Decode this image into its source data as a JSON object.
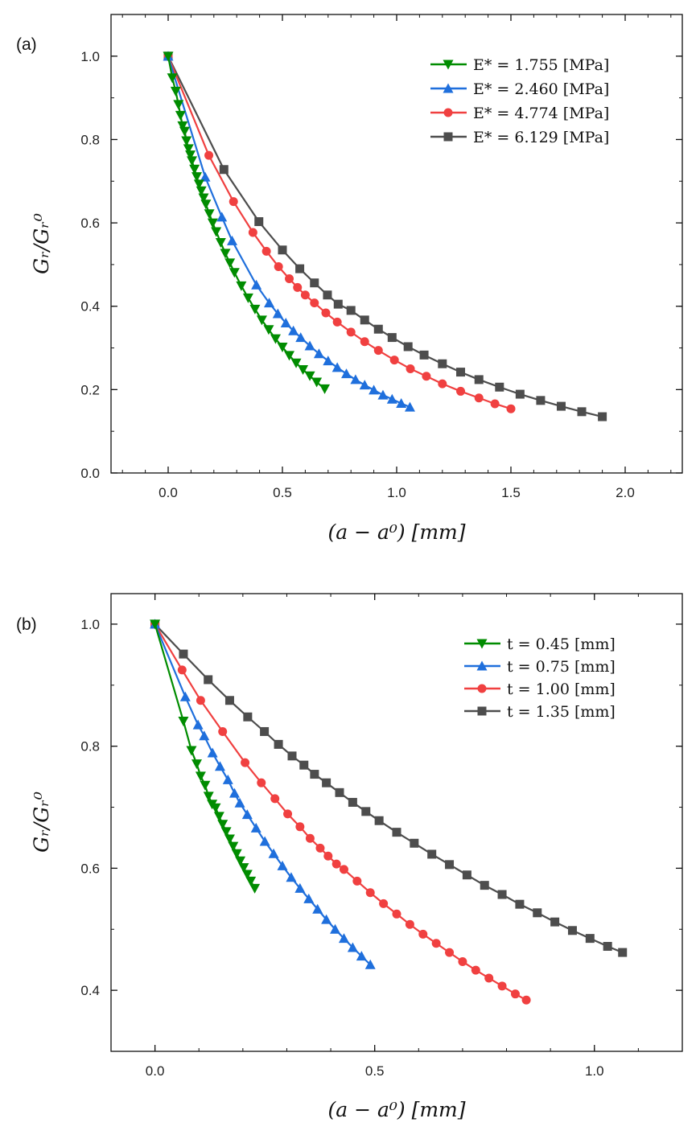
{
  "chart_data": [
    {
      "panel_label": "(a)",
      "type": "line",
      "xlabel": "(a − a⁰) [mm]",
      "ylabel": "Gᵣ/Gᵣ⁰",
      "xlim": [
        -0.25,
        2.25
      ],
      "ylim": [
        0.0,
        1.1
      ],
      "xticks": [
        "0.0",
        "0.5",
        "1.0",
        "1.5",
        "2.0"
      ],
      "yticks": [
        "0.0",
        "0.2",
        "0.4",
        "0.6",
        "0.8",
        "1.0"
      ],
      "grid": false,
      "legend_position": "top-right",
      "series": [
        {
          "name": "E* = 6.129 [MPa]",
          "color": "#4d4d4d",
          "marker": "square",
          "points": [
            [
              0,
              1.0
            ],
            [
              0.244,
              0.728
            ],
            [
              0.397,
              0.603
            ],
            [
              0.5,
              0.535
            ],
            [
              0.576,
              0.49
            ],
            [
              0.64,
              0.456
            ],
            [
              0.697,
              0.427
            ],
            [
              0.744,
              0.405
            ],
            [
              0.8,
              0.39
            ],
            [
              0.86,
              0.367
            ],
            [
              0.92,
              0.345
            ],
            [
              0.98,
              0.325
            ],
            [
              1.05,
              0.303
            ],
            [
              1.12,
              0.283
            ],
            [
              1.2,
              0.262
            ],
            [
              1.28,
              0.242
            ],
            [
              1.36,
              0.224
            ],
            [
              1.45,
              0.206
            ],
            [
              1.54,
              0.189
            ],
            [
              1.63,
              0.174
            ],
            [
              1.72,
              0.16
            ],
            [
              1.81,
              0.147
            ],
            [
              1.9,
              0.135
            ]
          ]
        },
        {
          "name": "E* = 4.774 [MPa]",
          "color": "#f04040",
          "marker": "circle",
          "points": [
            [
              0,
              1.0
            ],
            [
              0.178,
              0.762
            ],
            [
              0.286,
              0.651
            ],
            [
              0.371,
              0.577
            ],
            [
              0.43,
              0.532
            ],
            [
              0.483,
              0.495
            ],
            [
              0.53,
              0.466
            ],
            [
              0.566,
              0.445
            ],
            [
              0.6,
              0.427
            ],
            [
              0.64,
              0.408
            ],
            [
              0.69,
              0.384
            ],
            [
              0.74,
              0.362
            ],
            [
              0.8,
              0.338
            ],
            [
              0.86,
              0.315
            ],
            [
              0.92,
              0.294
            ],
            [
              0.99,
              0.271
            ],
            [
              1.06,
              0.25
            ],
            [
              1.13,
              0.232
            ],
            [
              1.2,
              0.214
            ],
            [
              1.28,
              0.196
            ],
            [
              1.36,
              0.18
            ],
            [
              1.43,
              0.166
            ],
            [
              1.5,
              0.154
            ]
          ]
        },
        {
          "name": "E* = 2.460 [MPa]",
          "color": "#1f6fdc",
          "marker": "triangle-up",
          "points": [
            [
              0,
              1.0
            ],
            [
              0.162,
              0.71
            ],
            [
              0.235,
              0.614
            ],
            [
              0.28,
              0.557
            ],
            [
              0.386,
              0.451
            ],
            [
              0.442,
              0.408
            ],
            [
              0.48,
              0.382
            ],
            [
              0.515,
              0.36
            ],
            [
              0.548,
              0.341
            ],
            [
              0.58,
              0.325
            ],
            [
              0.62,
              0.305
            ],
            [
              0.66,
              0.286
            ],
            [
              0.7,
              0.269
            ],
            [
              0.74,
              0.253
            ],
            [
              0.78,
              0.238
            ],
            [
              0.82,
              0.224
            ],
            [
              0.86,
              0.211
            ],
            [
              0.9,
              0.199
            ],
            [
              0.94,
              0.187
            ],
            [
              0.98,
              0.177
            ],
            [
              1.02,
              0.167
            ],
            [
              1.058,
              0.158
            ]
          ]
        },
        {
          "name": "E* = 1.755 [MPa]",
          "color": "#008c00",
          "marker": "triangle-down",
          "points": [
            [
              0,
              1.0
            ],
            [
              0.018,
              0.948
            ],
            [
              0.033,
              0.916
            ],
            [
              0.045,
              0.884
            ],
            [
              0.054,
              0.858
            ],
            [
              0.063,
              0.833
            ],
            [
              0.072,
              0.82
            ],
            [
              0.08,
              0.797
            ],
            [
              0.089,
              0.778
            ],
            [
              0.097,
              0.763
            ],
            [
              0.104,
              0.749
            ],
            [
              0.115,
              0.729
            ],
            [
              0.125,
              0.711
            ],
            [
              0.135,
              0.693
            ],
            [
              0.145,
              0.677
            ],
            [
              0.155,
              0.66
            ],
            [
              0.165,
              0.645
            ],
            [
              0.18,
              0.622
            ],
            [
              0.195,
              0.6
            ],
            [
              0.21,
              0.579
            ],
            [
              0.23,
              0.553
            ],
            [
              0.25,
              0.527
            ],
            [
              0.27,
              0.504
            ],
            [
              0.29,
              0.481
            ],
            [
              0.32,
              0.449
            ],
            [
              0.35,
              0.42
            ],
            [
              0.38,
              0.393
            ],
            [
              0.41,
              0.367
            ],
            [
              0.44,
              0.344
            ],
            [
              0.47,
              0.322
            ],
            [
              0.5,
              0.302
            ],
            [
              0.53,
              0.282
            ],
            [
              0.56,
              0.264
            ],
            [
              0.59,
              0.248
            ],
            [
              0.62,
              0.233
            ],
            [
              0.65,
              0.218
            ],
            [
              0.685,
              0.202
            ]
          ]
        }
      ],
      "legend_order": [
        3,
        2,
        1,
        0
      ]
    },
    {
      "panel_label": "(b)",
      "type": "line",
      "xlabel": "(a − a⁰) [mm]",
      "ylabel": "Gᵣ/Gᵣ⁰",
      "xlim": [
        -0.1,
        1.2
      ],
      "ylim": [
        0.3,
        1.05
      ],
      "xticks": [
        "0.0",
        "0.5",
        "1.0"
      ],
      "yticks": [
        "0.4",
        "0.6",
        "0.8",
        "1.0"
      ],
      "grid": false,
      "legend_position": "top-right",
      "series": [
        {
          "name": "t = 1.35 [mm]",
          "color": "#4d4d4d",
          "marker": "square",
          "points": [
            [
              0,
              1.0
            ],
            [
              0.0647,
              0.951
            ],
            [
              0.121,
              0.909
            ],
            [
              0.17,
              0.875
            ],
            [
              0.211,
              0.848
            ],
            [
              0.249,
              0.824
            ],
            [
              0.281,
              0.803
            ],
            [
              0.312,
              0.784
            ],
            [
              0.339,
              0.769
            ],
            [
              0.363,
              0.754
            ],
            [
              0.39,
              0.74
            ],
            [
              0.42,
              0.724
            ],
            [
              0.45,
              0.708
            ],
            [
              0.48,
              0.693
            ],
            [
              0.51,
              0.678
            ],
            [
              0.55,
              0.659
            ],
            [
              0.59,
              0.641
            ],
            [
              0.63,
              0.623
            ],
            [
              0.67,
              0.606
            ],
            [
              0.71,
              0.589
            ],
            [
              0.75,
              0.572
            ],
            [
              0.79,
              0.557
            ],
            [
              0.83,
              0.541
            ],
            [
              0.87,
              0.527
            ],
            [
              0.91,
              0.512
            ],
            [
              0.95,
              0.498
            ],
            [
              0.99,
              0.485
            ],
            [
              1.03,
              0.472
            ],
            [
              1.064,
              0.462
            ]
          ]
        },
        {
          "name": "t = 1.00 [mm]",
          "color": "#f04040",
          "marker": "circle",
          "points": [
            [
              0,
              1.0
            ],
            [
              0.0617,
              0.925
            ],
            [
              0.104,
              0.875
            ],
            [
              0.154,
              0.824
            ],
            [
              0.205,
              0.773
            ],
            [
              0.242,
              0.74
            ],
            [
              0.273,
              0.714
            ],
            [
              0.302,
              0.689
            ],
            [
              0.33,
              0.668
            ],
            [
              0.353,
              0.649
            ],
            [
              0.376,
              0.633
            ],
            [
              0.394,
              0.62
            ],
            [
              0.413,
              0.607
            ],
            [
              0.43,
              0.598
            ],
            [
              0.46,
              0.579
            ],
            [
              0.49,
              0.56
            ],
            [
              0.52,
              0.542
            ],
            [
              0.55,
              0.525
            ],
            [
              0.58,
              0.508
            ],
            [
              0.61,
              0.492
            ],
            [
              0.64,
              0.477
            ],
            [
              0.67,
              0.462
            ],
            [
              0.7,
              0.447
            ],
            [
              0.73,
              0.433
            ],
            [
              0.76,
              0.42
            ],
            [
              0.79,
              0.407
            ],
            [
              0.82,
              0.394
            ],
            [
              0.845,
              0.384
            ]
          ]
        },
        {
          "name": "t = 0.75 [mm]",
          "color": "#1f6fdc",
          "marker": "triangle-up",
          "points": [
            [
              0,
              1.0
            ],
            [
              0.069,
              0.881
            ],
            [
              0.098,
              0.835
            ],
            [
              0.112,
              0.817
            ],
            [
              0.131,
              0.789
            ],
            [
              0.148,
              0.767
            ],
            [
              0.166,
              0.745
            ],
            [
              0.181,
              0.723
            ],
            [
              0.193,
              0.707
            ],
            [
              0.21,
              0.688
            ],
            [
              0.23,
              0.666
            ],
            [
              0.25,
              0.644
            ],
            [
              0.27,
              0.624
            ],
            [
              0.29,
              0.604
            ],
            [
              0.31,
              0.585
            ],
            [
              0.33,
              0.567
            ],
            [
              0.35,
              0.55
            ],
            [
              0.37,
              0.533
            ],
            [
              0.39,
              0.516
            ],
            [
              0.41,
              0.5
            ],
            [
              0.43,
              0.485
            ],
            [
              0.45,
              0.47
            ],
            [
              0.47,
              0.456
            ],
            [
              0.49,
              0.442
            ]
          ]
        },
        {
          "name": "t = 0.45 [mm]",
          "color": "#008c00",
          "marker": "triangle-down",
          "points": [
            [
              0,
              1.0
            ],
            [
              0.0647,
              0.841
            ],
            [
              0.083,
              0.793
            ],
            [
              0.095,
              0.771
            ],
            [
              0.104,
              0.751
            ],
            [
              0.114,
              0.736
            ],
            [
              0.122,
              0.718
            ],
            [
              0.13,
              0.705
            ],
            [
              0.138,
              0.699
            ],
            [
              0.146,
              0.685
            ],
            [
              0.154,
              0.672
            ],
            [
              0.162,
              0.66
            ],
            [
              0.17,
              0.648
            ],
            [
              0.178,
              0.636
            ],
            [
              0.186,
              0.624
            ],
            [
              0.194,
              0.612
            ],
            [
              0.202,
              0.601
            ],
            [
              0.21,
              0.59
            ],
            [
              0.218,
              0.579
            ],
            [
              0.227,
              0.567
            ]
          ]
        }
      ],
      "legend_order": [
        3,
        2,
        1,
        0
      ]
    }
  ]
}
